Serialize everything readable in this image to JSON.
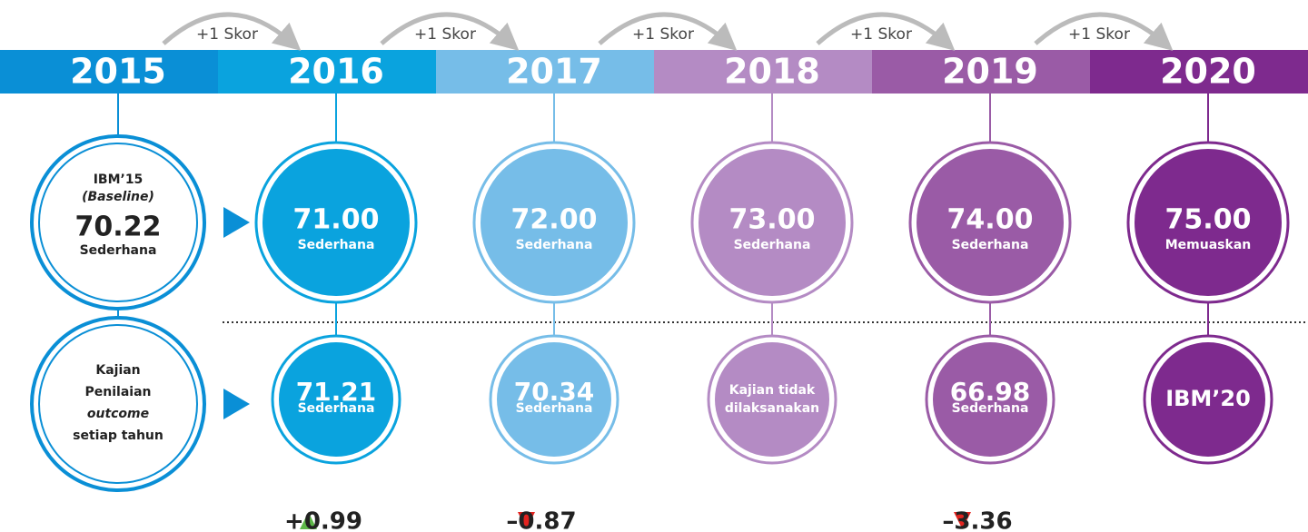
{
  "arrows": [
    "+1 Skor",
    "+1 Skor",
    "+1 Skor",
    "+1 Skor",
    "+1 Skor"
  ],
  "baseline": {
    "year": "2015",
    "title": "IBM’15",
    "subtitle": "(Baseline)",
    "score": "70.22",
    "grade": "Sederhana",
    "color": "#0a8fd6"
  },
  "annual": {
    "lines": [
      "Kajian",
      "Penilaian",
      "outcome",
      "setiap tahun"
    ]
  },
  "years": [
    {
      "year": "2016",
      "color": "#0aa3de",
      "target": {
        "score": "71.00",
        "grade": "Sederhana"
      },
      "actual": {
        "lines": [
          "71.21",
          "Sederhana"
        ]
      }
    },
    {
      "year": "2017",
      "color": "#76bde8",
      "target": {
        "score": "72.00",
        "grade": "Sederhana"
      },
      "actual": {
        "lines": [
          "70.34",
          "Sederhana"
        ]
      }
    },
    {
      "year": "2018",
      "color": "#b48bc4",
      "target": {
        "score": "73.00",
        "grade": "Sederhana"
      },
      "actual": {
        "lines": [
          "Kajian tidak",
          "dilaksanakan"
        ]
      }
    },
    {
      "year": "2019",
      "color": "#9a5ba6",
      "target": {
        "score": "74.00",
        "grade": "Sederhana"
      },
      "actual": {
        "lines": [
          "66.98",
          "Sederhana"
        ]
      }
    },
    {
      "year": "2020",
      "color": "#7e2a8e",
      "target": {
        "score": "75.00",
        "grade": "Memuaskan"
      },
      "actual": {
        "lines": [
          "IBM’20"
        ]
      }
    }
  ],
  "changes": [
    {
      "column": 0,
      "label": "+0.99",
      "direction": "up"
    },
    {
      "column": 1,
      "label": "–0.87",
      "direction": "down"
    },
    {
      "column": 3,
      "label": "–3.36",
      "direction": "down"
    }
  ]
}
